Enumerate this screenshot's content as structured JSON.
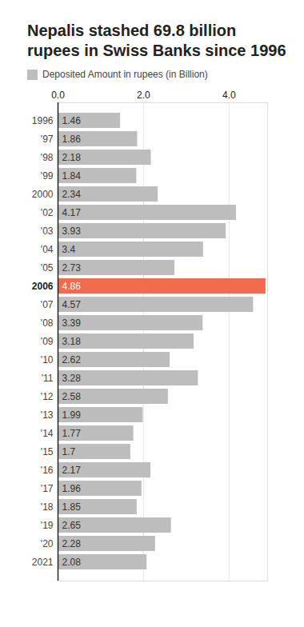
{
  "chart_data": {
    "type": "bar",
    "orientation": "horizontal",
    "title": "Nepalis stashed 69.8 billion rupees in Swiss Banks since 1996",
    "categories": [
      "1996",
      "'97",
      "'98",
      "'99",
      "2000",
      "'02",
      "'03",
      "'04",
      "'05",
      "2006",
      "'07",
      "'08",
      "'09",
      "'10",
      "'11",
      "'12",
      "'13",
      "'14",
      "'15",
      "'16",
      "'17",
      "'18",
      "'19",
      "'20",
      "2021"
    ],
    "series": [
      {
        "name": "Deposited Amount in rupees (in Billion)",
        "color": "#bdbdbd",
        "values": [
          1.46,
          1.86,
          2.18,
          1.84,
          2.34,
          4.17,
          3.93,
          3.4,
          2.73,
          4.86,
          4.57,
          3.39,
          3.18,
          2.62,
          3.28,
          2.58,
          1.99,
          1.77,
          1.7,
          2.17,
          1.96,
          1.85,
          2.65,
          2.28,
          2.08
        ],
        "colors": [
          "#bdbdbd",
          "#bdbdbd",
          "#bdbdbd",
          "#bdbdbd",
          "#bdbdbd",
          "#bdbdbd",
          "#bdbdbd",
          "#bdbdbd",
          "#bdbdbd",
          "#f26b4f",
          "#bdbdbd",
          "#bdbdbd",
          "#bdbdbd",
          "#bdbdbd",
          "#bdbdbd",
          "#bdbdbd",
          "#bdbdbd",
          "#bdbdbd",
          "#bdbdbd",
          "#bdbdbd",
          "#bdbdbd",
          "#bdbdbd",
          "#bdbdbd",
          "#bdbdbd",
          "#bdbdbd"
        ]
      }
    ],
    "xlim": [
      0,
      4.9
    ],
    "xticks": [
      0,
      2,
      4
    ],
    "grid": true,
    "data_labels": true,
    "legend": "top-left"
  }
}
